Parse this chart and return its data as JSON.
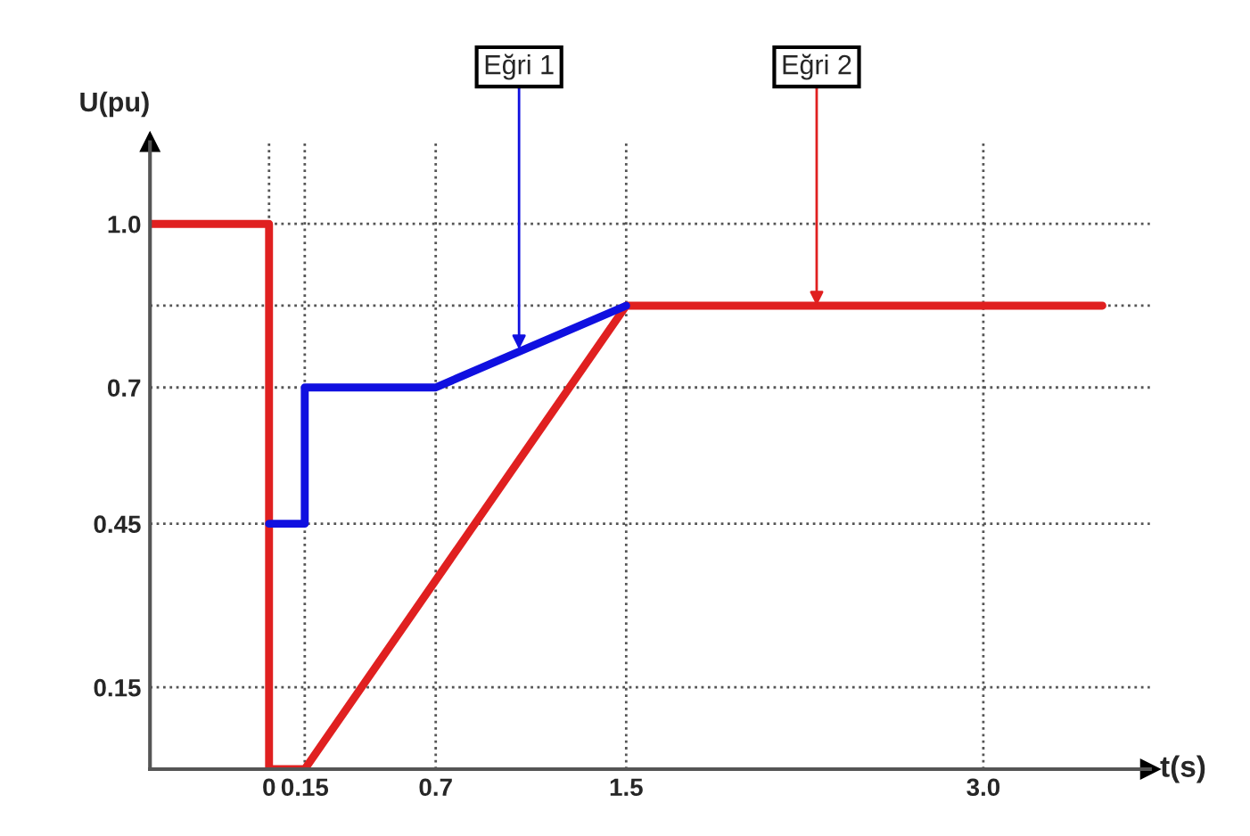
{
  "chart_data": {
    "type": "line",
    "xlabel": "t(s)",
    "ylabel": "U(pu)",
    "series": [
      {
        "color": "#e02020",
        "x": [
          -0.5,
          0,
          0,
          0.15,
          1.5,
          3.5
        ],
        "values": [
          1.0,
          1.0,
          0,
          0,
          0.85,
          0.85
        ]
      },
      {
        "color": "#1010e0",
        "x": [
          0,
          0.15,
          0.15,
          0.7,
          1.5
        ],
        "values": [
          0.45,
          0.45,
          0.7,
          0.7,
          0.85
        ]
      }
    ],
    "xlim": [
      -0.5,
      3.7
    ],
    "ylim": [
      0,
      1.15
    ],
    "xticks": [
      0,
      0.15,
      0.7,
      1.5,
      {
        "value": 3.0,
        "label": "3.0"
      }
    ],
    "yticks": [
      0.15,
      0.45,
      0.7,
      {
        "value": 0.85,
        "label": null
      },
      {
        "value": 1.0,
        "label": "1.0"
      }
    ],
    "grid": true,
    "marker": "none",
    "line_style": "solid",
    "legend": false,
    "annotations": [
      {
        "text": "Eğri 1",
        "x": 1.05,
        "y": 0.77
      },
      {
        "text": "Eğri 2",
        "x": 2.3,
        "y": 0.85
      }
    ]
  }
}
